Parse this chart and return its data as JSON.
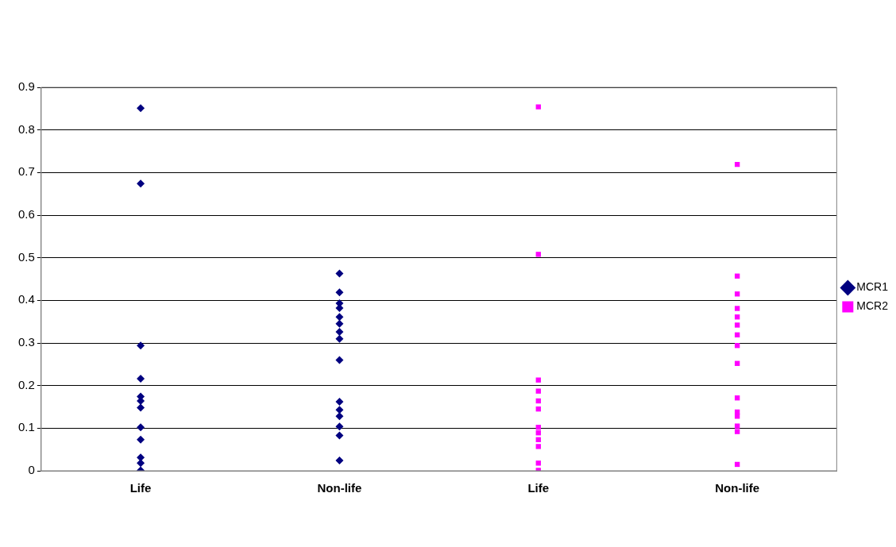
{
  "chart_data": {
    "type": "scatter",
    "categories": [
      "Life",
      "Non-life",
      "Life",
      "Non-life"
    ],
    "series": [
      {
        "name": "MCR1",
        "color": "#000080",
        "marker": "diamond",
        "values": [
          0.851,
          0.463,
          null,
          null
        ]
      },
      {
        "color": "#000080",
        "marker": "diamond",
        "values": [
          0.674,
          0.419,
          null,
          null
        ]
      },
      {
        "color": "#000080",
        "marker": "diamond",
        "values": [
          0.294,
          0.393,
          null,
          null
        ]
      },
      {
        "color": "#000080",
        "marker": "diamond",
        "values": [
          0.216,
          0.382,
          null,
          null
        ]
      },
      {
        "color": "#000080",
        "marker": "diamond",
        "values": [
          0.174,
          0.361,
          null,
          null
        ]
      },
      {
        "color": "#000080",
        "marker": "diamond",
        "values": [
          0.164,
          0.345,
          null,
          null
        ]
      },
      {
        "color": "#000080",
        "marker": "diamond",
        "values": [
          0.148,
          0.326,
          null,
          null
        ]
      },
      {
        "color": "#000080",
        "marker": "diamond",
        "values": [
          0.102,
          0.31,
          null,
          null
        ]
      },
      {
        "color": "#000080",
        "marker": "diamond",
        "values": [
          0.073,
          0.26,
          null,
          null
        ]
      },
      {
        "color": "#000080",
        "marker": "diamond",
        "values": [
          0.031,
          0.162,
          null,
          null
        ]
      },
      {
        "color": "#000080",
        "marker": "diamond",
        "values": [
          0.018,
          0.143,
          null,
          null
        ]
      },
      {
        "color": "#000080",
        "marker": "diamond",
        "values": [
          0.001,
          0.128,
          null,
          null
        ]
      },
      {
        "color": "#000080",
        "marker": "diamond",
        "values": [
          null,
          0.104,
          null,
          null
        ]
      },
      {
        "color": "#000080",
        "marker": "diamond",
        "values": [
          null,
          0.083,
          null,
          null
        ]
      },
      {
        "color": "#000080",
        "marker": "diamond",
        "values": [
          null,
          0.024,
          null,
          null
        ]
      },
      {
        "name": "MCR2",
        "color": "#ff00ff",
        "marker": "square",
        "values": [
          null,
          null,
          0.854,
          0.719
        ]
      },
      {
        "color": "#ff00ff",
        "marker": "square",
        "values": [
          null,
          null,
          0.508,
          0.457
        ]
      },
      {
        "color": "#ff00ff",
        "marker": "square",
        "values": [
          null,
          null,
          0.213,
          0.415
        ]
      },
      {
        "color": "#ff00ff",
        "marker": "square",
        "values": [
          null,
          null,
          0.187,
          0.381
        ]
      },
      {
        "color": "#ff00ff",
        "marker": "square",
        "values": [
          null,
          null,
          0.164,
          0.361
        ]
      },
      {
        "color": "#ff00ff",
        "marker": "square",
        "values": [
          null,
          null,
          0.145,
          0.342
        ]
      },
      {
        "color": "#ff00ff",
        "marker": "square",
        "values": [
          null,
          null,
          0.102,
          0.319
        ]
      },
      {
        "color": "#ff00ff",
        "marker": "square",
        "values": [
          null,
          null,
          0.089,
          0.294
        ]
      },
      {
        "color": "#ff00ff",
        "marker": "square",
        "values": [
          null,
          null,
          0.073,
          0.252
        ]
      },
      {
        "color": "#ff00ff",
        "marker": "square",
        "values": [
          null,
          null,
          0.057,
          0.171
        ]
      },
      {
        "color": "#ff00ff",
        "marker": "square",
        "values": [
          null,
          null,
          0.018,
          0.138
        ]
      },
      {
        "color": "#ff00ff",
        "marker": "square",
        "values": [
          null,
          null,
          0.001,
          0.128
        ]
      },
      {
        "color": "#ff00ff",
        "marker": "square",
        "values": [
          null,
          null,
          null,
          0.105
        ]
      },
      {
        "color": "#ff00ff",
        "marker": "square",
        "values": [
          null,
          null,
          null,
          0.092
        ]
      },
      {
        "color": "#ff00ff",
        "marker": "square",
        "values": [
          null,
          null,
          null,
          0.015
        ]
      }
    ],
    "ylim": [
      0,
      0.9
    ],
    "yticks": [
      0,
      0.1,
      0.2,
      0.3,
      0.4,
      0.5,
      0.6,
      0.7,
      0.8,
      0.9
    ],
    "grid": "y",
    "legend": "right"
  }
}
